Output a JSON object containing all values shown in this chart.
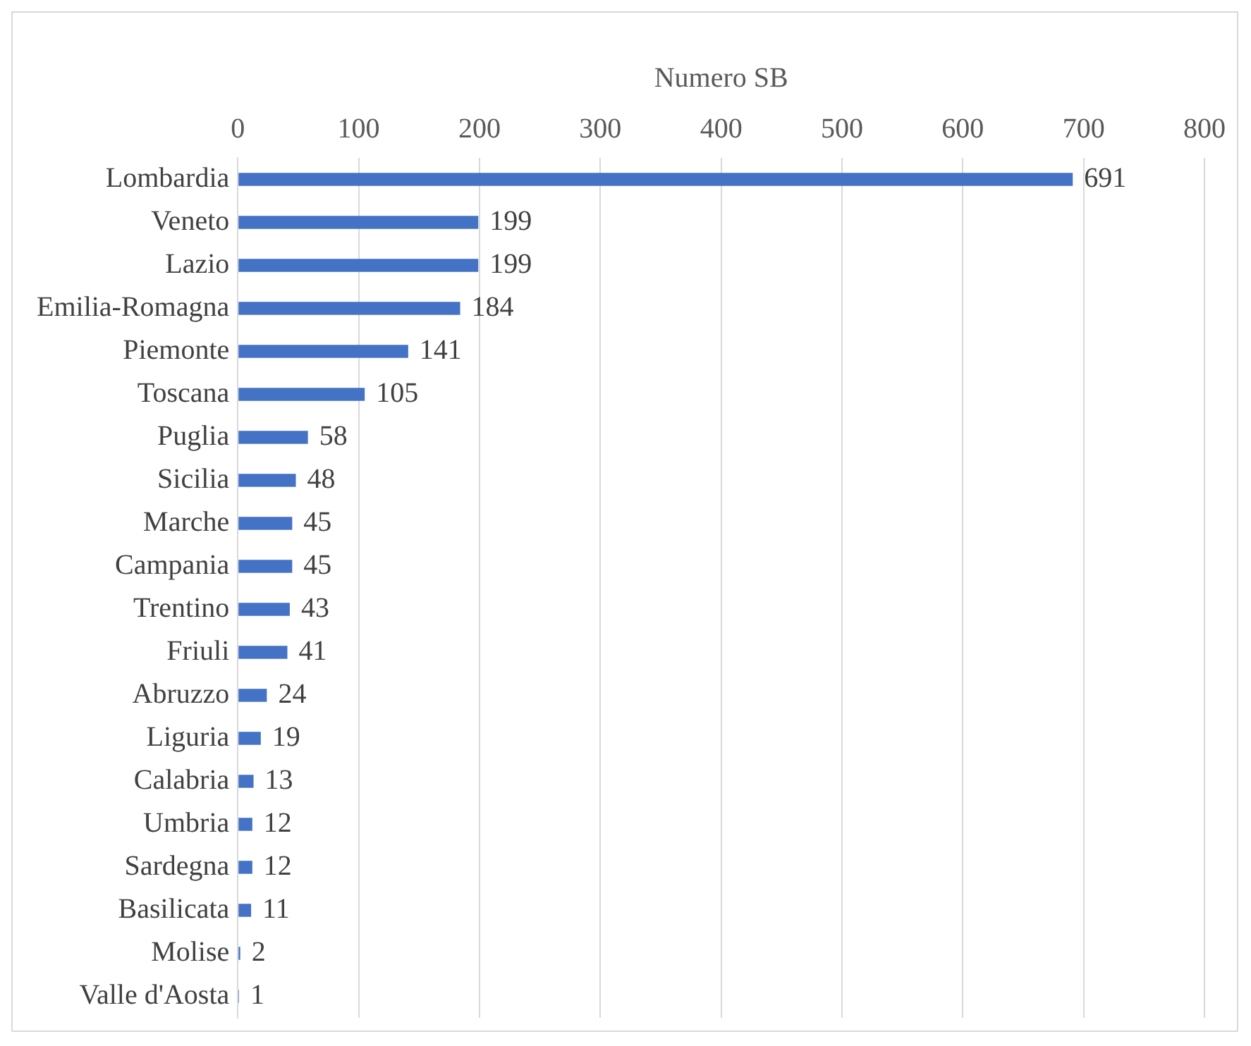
{
  "chart_data": {
    "type": "bar",
    "orientation": "horizontal",
    "xlabel": "Numero SB",
    "categories": [
      "Lombardia",
      "Veneto",
      "Lazio",
      "Emilia-Romagna",
      "Piemonte",
      "Toscana",
      "Puglia",
      "Sicilia",
      "Marche",
      "Campania",
      "Trentino",
      "Friuli",
      "Abruzzo",
      "Liguria",
      "Calabria",
      "Umbria",
      "Sardegna",
      "Basilicata",
      "Molise",
      "Valle d'Aosta"
    ],
    "values": [
      691,
      199,
      199,
      184,
      141,
      105,
      58,
      48,
      45,
      45,
      43,
      41,
      24,
      19,
      13,
      12,
      12,
      11,
      2,
      1
    ],
    "color": "#4472c4",
    "xlim": [
      0,
      800
    ],
    "xticks": [
      0,
      100,
      200,
      300,
      400,
      500,
      600,
      700,
      800
    ],
    "grid": "x",
    "data_labels": true,
    "legend": false
  }
}
